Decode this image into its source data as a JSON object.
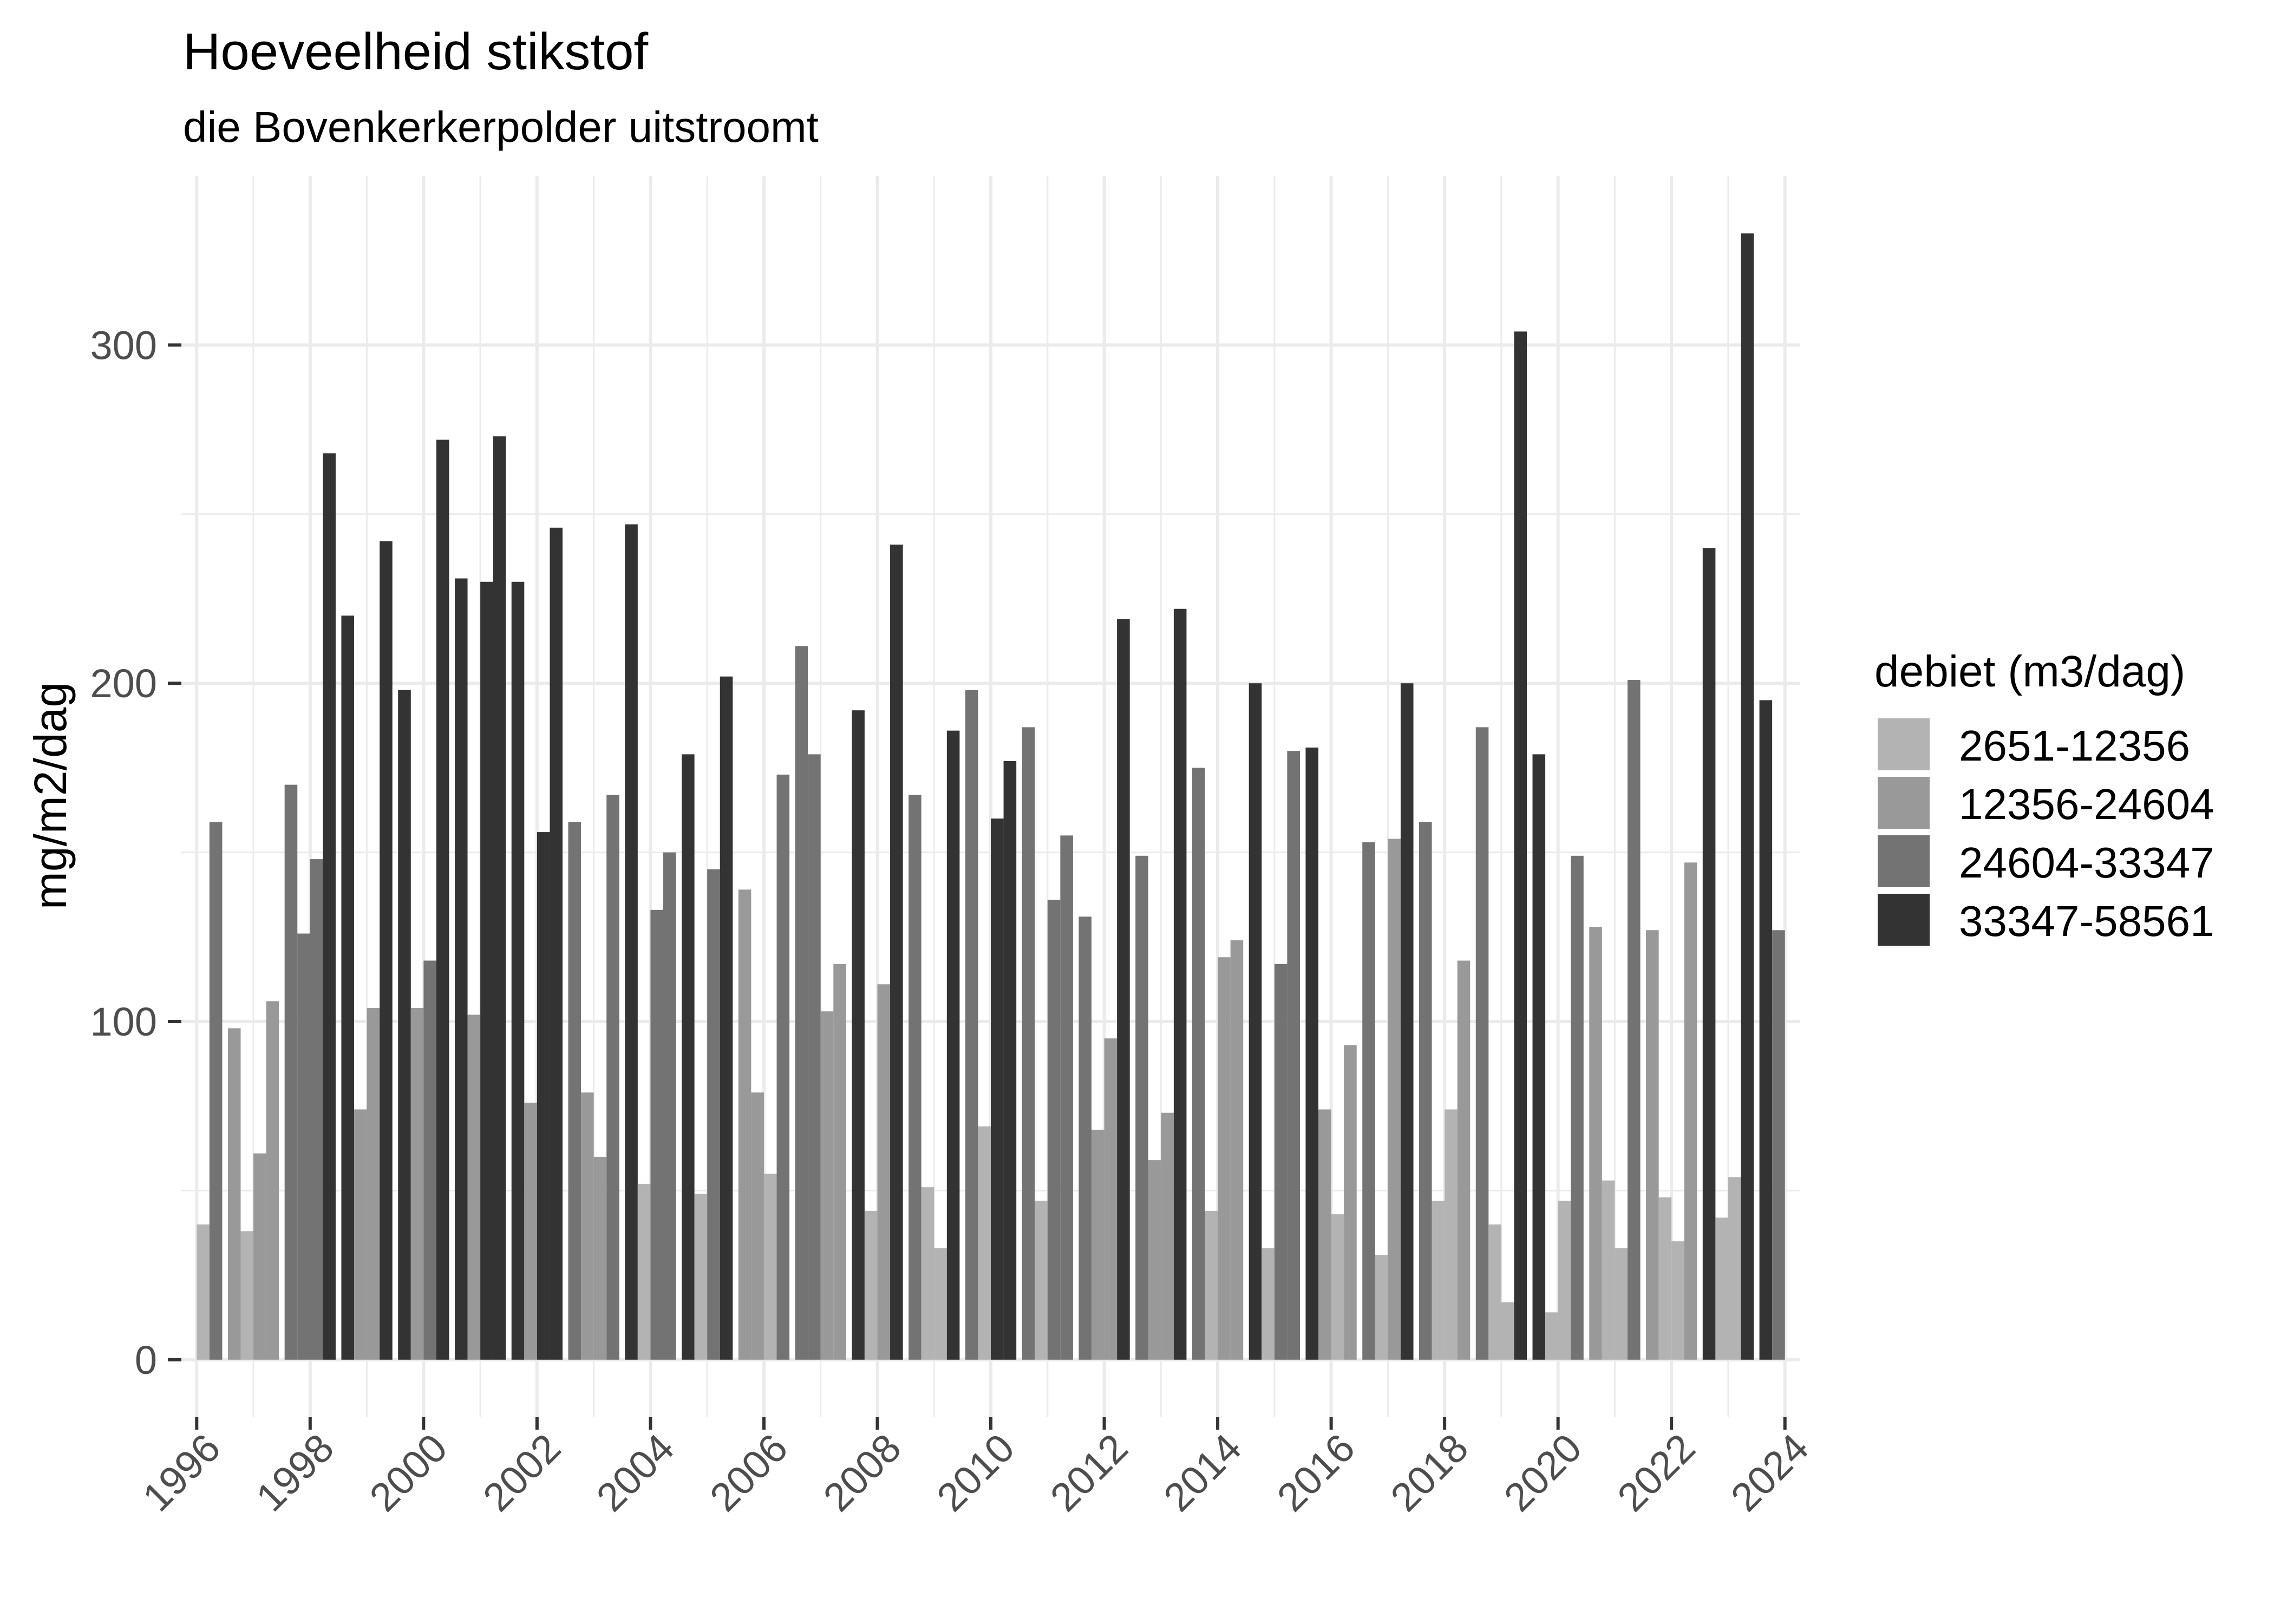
{
  "chart_data": {
    "type": "bar",
    "title": "Hoeveelheid stikstof",
    "subtitle": "die Bovenkerkerpolder uitstroomt",
    "xlabel": "",
    "ylabel": "mg/m2/dag",
    "xlim": [
      1995.73,
      2024.27
    ],
    "ylim": [
      -17,
      350
    ],
    "grid": true,
    "x_ticks": [
      "1996",
      "1998",
      "2000",
      "2002",
      "2004",
      "2006",
      "2008",
      "2010",
      "2012",
      "2014",
      "2016",
      "2018",
      "2020",
      "2022",
      "2024"
    ],
    "y_ticks": [
      "0",
      "100",
      "200",
      "300"
    ],
    "legend": {
      "title": "debiet (m3/dag)",
      "placement": "right",
      "items": [
        {
          "label": "2651-12356",
          "color": "#b3b3b3"
        },
        {
          "label": "12356-24604",
          "color": "#999999"
        },
        {
          "label": "24604-33347",
          "color": "#737373"
        },
        {
          "label": "33347-58561",
          "color": "#333333"
        }
      ]
    },
    "quarters_per_year": 4,
    "data": [
      {
        "year": 1996,
        "values": [
          40,
          159,
          98,
          38
        ],
        "classes": [
          0,
          2,
          1,
          0
        ]
      },
      {
        "year": 1997,
        "values": [
          61,
          106,
          170,
          126
        ],
        "classes": [
          1,
          1,
          2,
          2
        ]
      },
      {
        "year": 1998,
        "values": [
          148,
          268,
          220,
          74
        ],
        "classes": [
          2,
          3,
          3,
          1
        ]
      },
      {
        "year": 1999,
        "values": [
          104,
          242,
          198,
          104
        ],
        "classes": [
          1,
          3,
          3,
          1
        ]
      },
      {
        "year": 2000,
        "values": [
          118,
          272,
          231,
          102
        ],
        "classes": [
          2,
          3,
          3,
          1
        ]
      },
      {
        "year": 2001,
        "values": [
          230,
          273,
          230,
          76
        ],
        "classes": [
          3,
          3,
          3,
          1
        ]
      },
      {
        "year": 2002,
        "values": [
          156,
          246,
          159,
          79
        ],
        "classes": [
          3,
          3,
          2,
          1
        ]
      },
      {
        "year": 2003,
        "values": [
          60,
          167,
          247,
          52
        ],
        "classes": [
          1,
          2,
          3,
          0
        ]
      },
      {
        "year": 2004,
        "values": [
          133,
          150,
          179,
          49
        ],
        "classes": [
          2,
          2,
          3,
          0
        ]
      },
      {
        "year": 2005,
        "values": [
          145,
          202,
          139,
          79
        ],
        "classes": [
          2,
          3,
          1,
          1
        ]
      },
      {
        "year": 2006,
        "values": [
          55,
          173,
          211,
          179
        ],
        "classes": [
          0,
          2,
          2,
          2
        ]
      },
      {
        "year": 2007,
        "values": [
          103,
          117,
          192,
          44
        ],
        "classes": [
          1,
          1,
          3,
          0
        ]
      },
      {
        "year": 2008,
        "values": [
          111,
          241,
          167,
          51
        ],
        "classes": [
          1,
          3,
          2,
          0
        ]
      },
      {
        "year": 2009,
        "values": [
          33,
          186,
          198,
          69
        ],
        "classes": [
          0,
          3,
          2,
          0
        ]
      },
      {
        "year": 2010,
        "values": [
          160,
          177,
          187,
          47
        ],
        "classes": [
          3,
          3,
          2,
          0
        ]
      },
      {
        "year": 2011,
        "values": [
          136,
          155,
          131,
          68
        ],
        "classes": [
          2,
          2,
          2,
          1
        ]
      },
      {
        "year": 2012,
        "values": [
          95,
          219,
          149,
          59
        ],
        "classes": [
          1,
          3,
          2,
          1
        ]
      },
      {
        "year": 2013,
        "values": [
          73,
          222,
          175,
          44
        ],
        "classes": [
          1,
          3,
          2,
          0
        ]
      },
      {
        "year": 2014,
        "values": [
          119,
          124,
          200,
          33
        ],
        "classes": [
          1,
          1,
          3,
          0
        ]
      },
      {
        "year": 2015,
        "values": [
          117,
          180,
          181,
          74
        ],
        "classes": [
          2,
          2,
          3,
          1
        ]
      },
      {
        "year": 2016,
        "values": [
          43,
          93,
          153,
          31
        ],
        "classes": [
          0,
          1,
          2,
          0
        ]
      },
      {
        "year": 2017,
        "values": [
          154,
          200,
          159,
          47
        ],
        "classes": [
          1,
          3,
          2,
          0
        ]
      },
      {
        "year": 2018,
        "values": [
          74,
          118,
          187,
          40
        ],
        "classes": [
          0,
          1,
          2,
          0
        ]
      },
      {
        "year": 2019,
        "values": [
          17,
          304,
          179,
          14
        ],
        "classes": [
          0,
          3,
          3,
          0
        ]
      },
      {
        "year": 2020,
        "values": [
          47,
          149,
          128,
          53
        ],
        "classes": [
          0,
          2,
          1,
          0
        ]
      },
      {
        "year": 2021,
        "values": [
          33,
          201,
          127,
          48
        ],
        "classes": [
          0,
          2,
          1,
          0
        ]
      },
      {
        "year": 2022,
        "values": [
          35,
          147,
          240,
          42
        ],
        "classes": [
          0,
          1,
          3,
          0
        ]
      },
      {
        "year": 2023,
        "values": [
          54,
          333,
          195,
          127
        ],
        "classes": [
          0,
          3,
          3,
          2
        ]
      }
    ]
  }
}
